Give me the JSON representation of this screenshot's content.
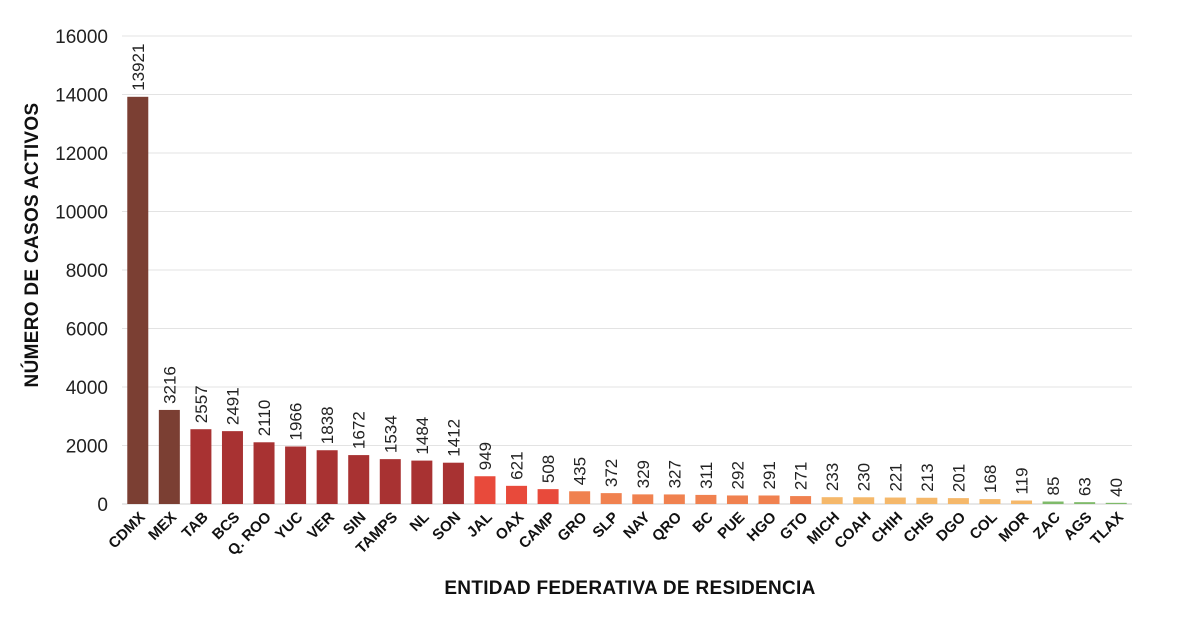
{
  "chart_data": {
    "type": "bar",
    "xlabel": "ENTIDAD FEDERATIVA DE RESIDENCIA",
    "ylabel": "NÚMERO DE CASOS ACTIVOS",
    "ylim": [
      0,
      16000
    ],
    "yticks": [
      0,
      2000,
      4000,
      6000,
      8000,
      10000,
      12000,
      14000,
      16000
    ],
    "grid": true,
    "categories": [
      "CDMX",
      "MEX",
      "TAB",
      "BCS",
      "Q. ROO",
      "YUC",
      "VER",
      "SIN",
      "TAMPS",
      "NL",
      "SON",
      "JAL",
      "OAX",
      "CAMP",
      "GRO",
      "SLP",
      "NAY",
      "QRO",
      "BC",
      "PUE",
      "HGO",
      "GTO",
      "MICH",
      "COAH",
      "CHIH",
      "CHIS",
      "DGO",
      "COL",
      "MOR",
      "ZAC",
      "AGS",
      "TLAX"
    ],
    "values": [
      13921,
      3216,
      2557,
      2491,
      2110,
      1966,
      1838,
      1672,
      1534,
      1484,
      1412,
      949,
      621,
      508,
      435,
      372,
      329,
      327,
      311,
      292,
      291,
      271,
      233,
      230,
      221,
      213,
      201,
      168,
      119,
      85,
      63,
      40
    ],
    "colors": [
      "#7b3f33",
      "#7b3f33",
      "#a83232",
      "#a83232",
      "#a83232",
      "#a83232",
      "#a83232",
      "#a83232",
      "#a83232",
      "#a83232",
      "#a83232",
      "#e84a3b",
      "#e84a3b",
      "#e84a3b",
      "#f0814f",
      "#f0814f",
      "#f0814f",
      "#f0814f",
      "#f0814f",
      "#f0814f",
      "#f0814f",
      "#f0814f",
      "#f5b86a",
      "#f5b86a",
      "#f5b86a",
      "#f5b86a",
      "#f5b86a",
      "#f5b86a",
      "#f5b86a",
      "#7fba6a",
      "#7fba6a",
      "#7fba6a"
    ]
  }
}
